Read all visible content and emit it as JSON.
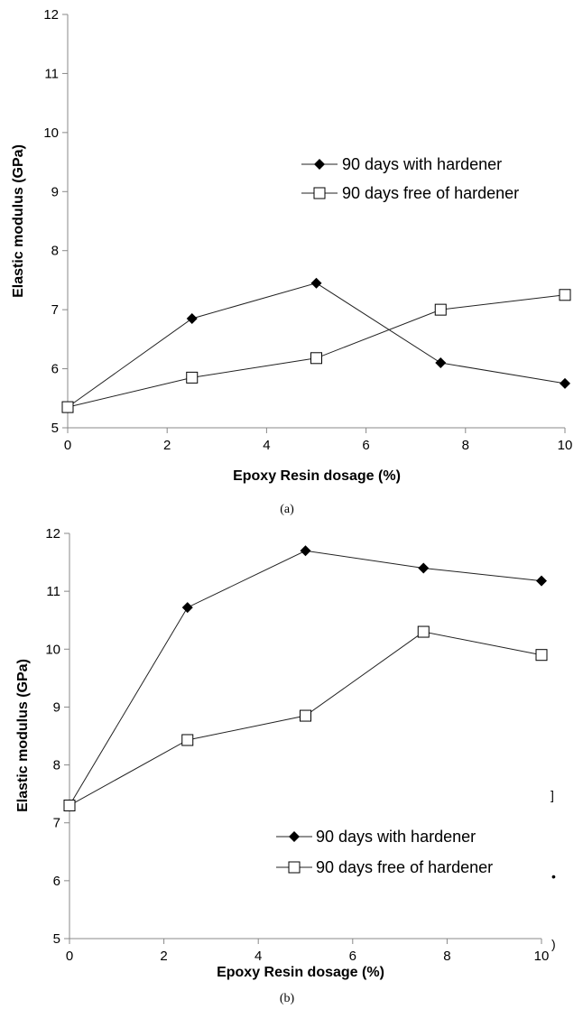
{
  "chart_data": [
    {
      "type": "line",
      "panel": "a",
      "caption": "(a)",
      "xlabel": "Epoxy Resin dosage (%)",
      "ylabel": "Elastic modulus (GPa)",
      "xlim": [
        0,
        10
      ],
      "ylim": [
        5,
        12
      ],
      "xticks": [
        "0",
        "2",
        "4",
        "6",
        "8",
        "10"
      ],
      "yticks": [
        "5",
        "6",
        "7",
        "8",
        "9",
        "10",
        "11",
        "12"
      ],
      "legend_position": "right-middle",
      "x": [
        0,
        2.5,
        5,
        7.5,
        10
      ],
      "series": [
        {
          "name": "90 days with hardener",
          "marker": "diamond",
          "values": [
            5.35,
            6.85,
            7.45,
            6.1,
            5.75
          ]
        },
        {
          "name": "90 days free of hardener",
          "marker": "square",
          "values": [
            5.35,
            5.85,
            6.18,
            7.0,
            7.25
          ]
        }
      ]
    },
    {
      "type": "line",
      "panel": "b",
      "caption": "(b)",
      "xlabel": "Epoxy Resin dosage (%)",
      "ylabel": "Elastic modulus (GPa)",
      "xlim": [
        0,
        10
      ],
      "ylim": [
        5,
        12
      ],
      "xticks": [
        "0",
        "2",
        "4",
        "6",
        "8",
        "10"
      ],
      "yticks": [
        "5",
        "6",
        "7",
        "8",
        "9",
        "10",
        "11",
        "12"
      ],
      "legend_position": "bottom-right",
      "x": [
        0,
        2.5,
        5,
        7.5,
        10
      ],
      "series": [
        {
          "name": "90 days with hardener",
          "marker": "diamond",
          "values": [
            7.3,
            10.72,
            11.7,
            11.4,
            11.18
          ]
        },
        {
          "name": "90 days free of hardener",
          "marker": "square",
          "values": [
            7.3,
            8.43,
            8.85,
            10.3,
            9.9
          ]
        }
      ]
    }
  ],
  "artifacts": [
    "]",
    "•",
    ")"
  ]
}
